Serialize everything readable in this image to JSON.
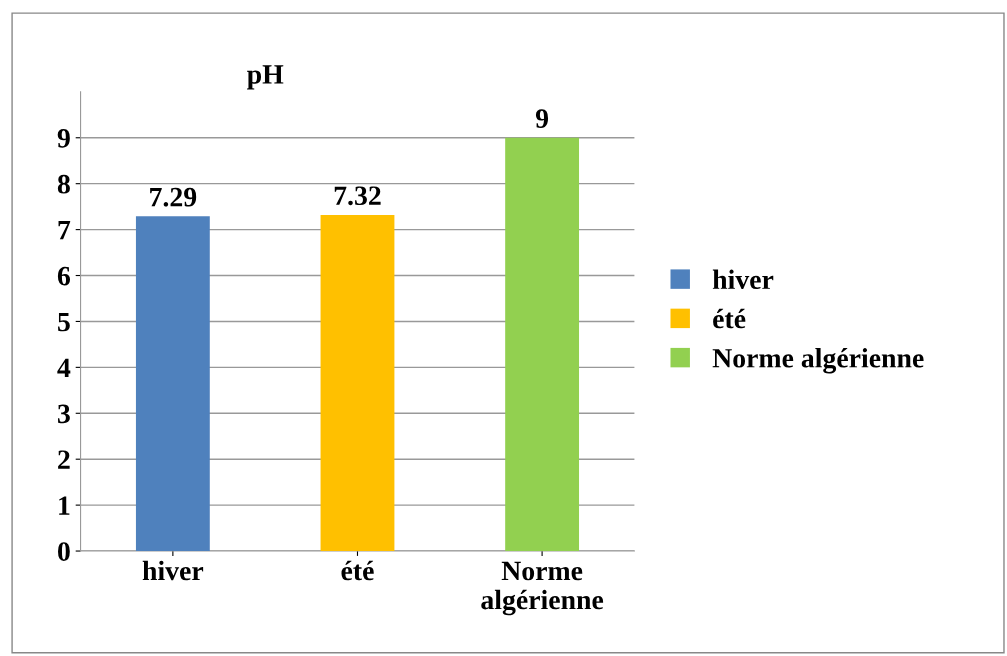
{
  "chart_data": {
    "type": "bar",
    "title": "pH",
    "categories": [
      "hiver",
      "été",
      "Norme algérienne"
    ],
    "series": [
      {
        "name": "hiver",
        "color": "#4f81bd",
        "values": [
          7.29,
          null,
          null
        ]
      },
      {
        "name": "été",
        "color": "#ffc000",
        "values": [
          null,
          7.32,
          null
        ]
      },
      {
        "name": "Norme algérienne",
        "color": "#92d050",
        "values": [
          null,
          null,
          9
        ]
      }
    ],
    "ylim": [
      0,
      10
    ],
    "yticks": [
      0,
      1,
      2,
      3,
      4,
      5,
      6,
      7,
      8,
      9
    ],
    "grid": "y",
    "legend": "right",
    "data_labels": true
  }
}
